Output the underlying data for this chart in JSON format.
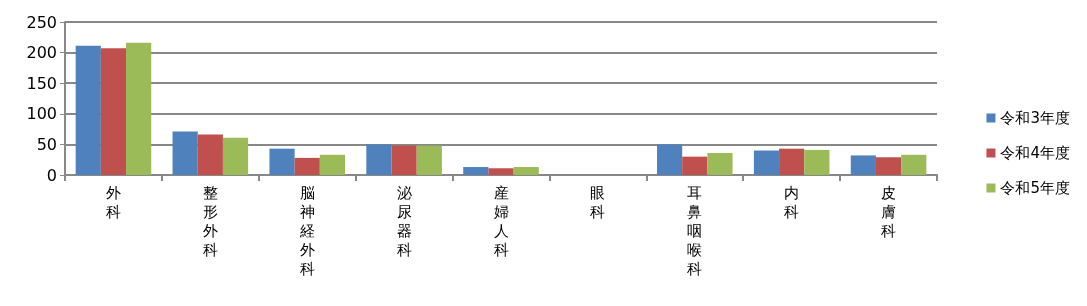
{
  "chart_data": {
    "type": "bar",
    "categories": [
      "外科",
      "整形外科",
      "脳神経外科",
      "泌尿器科",
      "産婦人科",
      "眼科",
      "耳鼻咽喉科",
      "内科",
      "皮膚科"
    ],
    "series": [
      {
        "name": "令和3年度",
        "color": "#4f81bd",
        "values": [
          211,
          71,
          43,
          50,
          13,
          0,
          50,
          40,
          32
        ]
      },
      {
        "name": "令和4年度",
        "color": "#c0504d",
        "values": [
          207,
          66,
          28,
          48,
          11,
          0,
          30,
          43,
          29
        ]
      },
      {
        "name": "令和5年度",
        "color": "#9bbb59",
        "values": [
          216,
          61,
          33,
          48,
          13,
          0,
          36,
          41,
          33
        ]
      }
    ],
    "ylim": [
      0,
      250
    ],
    "yticks": [
      0,
      50,
      100,
      150,
      200,
      250
    ],
    "grid": "y",
    "legend": "right"
  }
}
